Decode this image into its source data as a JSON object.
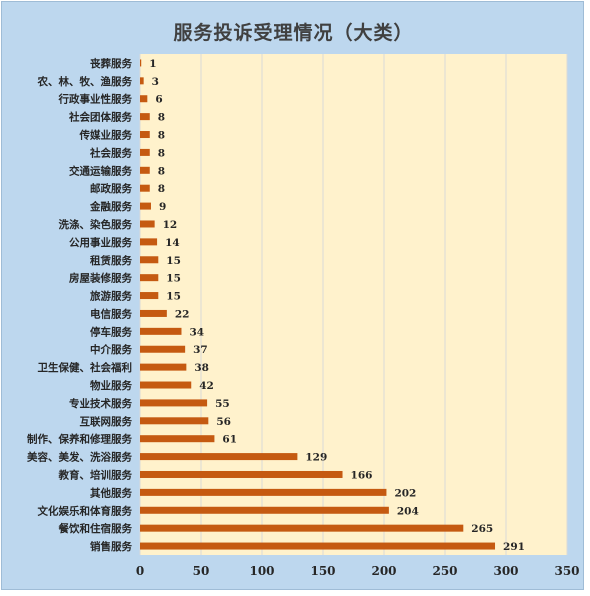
{
  "chart_data": {
    "type": "bar",
    "orientation": "horizontal",
    "title": "服务投诉受理情况（大类）",
    "categories": [
      "丧葬服务",
      "农、林、牧、渔服务",
      "行政事业性服务",
      "社会团体服务",
      "传媒业服务",
      "社会服务",
      "交通运输服务",
      "邮政服务",
      "金融服务",
      "洗涤、染色服务",
      "公用事业服务",
      "租赁服务",
      "房屋装修服务",
      "旅游服务",
      "电信服务",
      "停车服务",
      "中介服务",
      "卫生保健、社会福利",
      "物业服务",
      "专业技术服务",
      "互联网服务",
      "制作、保养和修理服务",
      "美容、美发、洗浴服务",
      "教育、培训服务",
      "其他服务",
      "文化娱乐和体育服务",
      "餐饮和住宿服务",
      "销售服务"
    ],
    "values": [
      1,
      3,
      6,
      8,
      8,
      8,
      8,
      8,
      9,
      12,
      14,
      15,
      15,
      15,
      22,
      34,
      37,
      38,
      42,
      55,
      56,
      61,
      129,
      166,
      202,
      204,
      265,
      291
    ],
    "xlim": [
      0,
      350
    ],
    "xticks": [
      0,
      50,
      100,
      150,
      200,
      250,
      300,
      350
    ],
    "grid": true,
    "legend": "none",
    "colors": {
      "bar": "#c55a11",
      "plot_background": "#fff2cc",
      "chart_background": "#bdd7ee",
      "gridline": "#d9d9d9"
    }
  }
}
